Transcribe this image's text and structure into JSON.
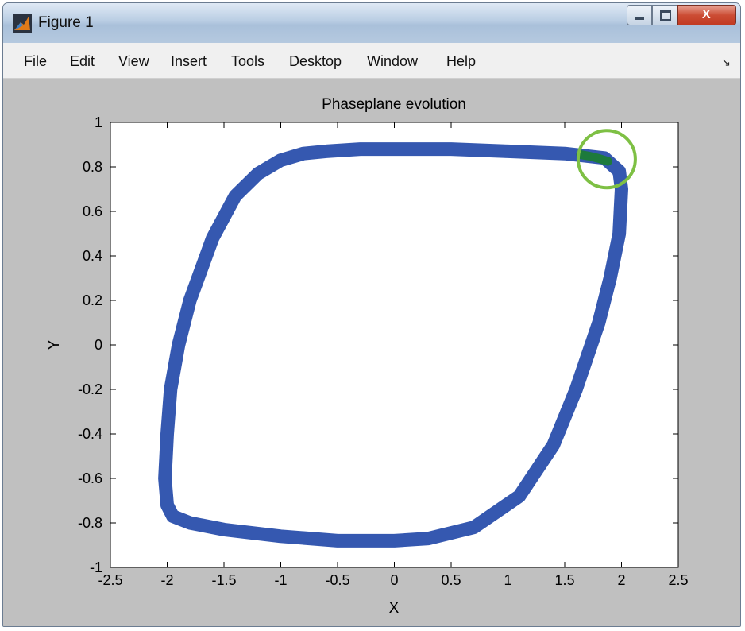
{
  "window": {
    "title": "Figure 1",
    "close_glyph": "X"
  },
  "menu": [
    "File",
    "Edit",
    "View",
    "Insert",
    "Tools",
    "Desktop",
    "Window",
    "Help"
  ],
  "chart_data": {
    "type": "scatter",
    "title": "Phaseplane evolution",
    "xlabel": "X",
    "ylabel": "Y",
    "xlim": [
      -2.5,
      2.5
    ],
    "ylim": [
      -1,
      1
    ],
    "xticks": [
      -2.5,
      -2,
      -1.5,
      -1,
      -0.5,
      0,
      0.5,
      1,
      1.5,
      2,
      2.5
    ],
    "yticks": [
      -1,
      -0.8,
      -0.6,
      -0.4,
      -0.2,
      0,
      0.2,
      0.4,
      0.6,
      0.8,
      1
    ],
    "xtick_labels": [
      "-2.5",
      "-2",
      "-1.5",
      "-1",
      "-0.5",
      "0",
      "0.5",
      "1",
      "1.5",
      "2",
      "2.5"
    ],
    "ytick_labels": [
      "-1",
      "-0.8",
      "-0.6",
      "-0.4",
      "-0.2",
      "0",
      "0.2",
      "0.4",
      "0.6",
      "0.8",
      "1"
    ],
    "grid": false,
    "series": [
      {
        "color": "#3558b0",
        "x": [
          1.85,
          1.98,
          2.0,
          1.98,
          1.9,
          1.8,
          1.6,
          1.4,
          1.1,
          0.7,
          0.3,
          0,
          -0.5,
          -1.0,
          -1.5,
          -1.8,
          -1.95,
          -2.0,
          -2.02,
          -2.0,
          -1.97,
          -1.9,
          -1.8,
          -1.6,
          -1.4,
          -1.2,
          -1.0,
          -0.8,
          -0.6,
          -0.3,
          0,
          0.5,
          1.0,
          1.5,
          1.85
        ],
        "y": [
          0.84,
          0.78,
          0.7,
          0.5,
          0.3,
          0.1,
          -0.2,
          -0.45,
          -0.68,
          -0.82,
          -0.87,
          -0.88,
          -0.88,
          -0.86,
          -0.83,
          -0.8,
          -0.77,
          -0.72,
          -0.6,
          -0.4,
          -0.2,
          0,
          0.2,
          0.48,
          0.67,
          0.77,
          0.83,
          0.86,
          0.87,
          0.88,
          0.88,
          0.88,
          0.87,
          0.86,
          0.84
        ]
      },
      {
        "color": "#1d7a3c",
        "x": [
          1.64,
          1.72,
          1.8,
          1.88
        ],
        "y": [
          0.855,
          0.848,
          0.838,
          0.825
        ]
      }
    ],
    "annotations": [
      {
        "type": "circle",
        "x": 1.87,
        "y": 0.835,
        "color": "#7ec044"
      }
    ]
  }
}
